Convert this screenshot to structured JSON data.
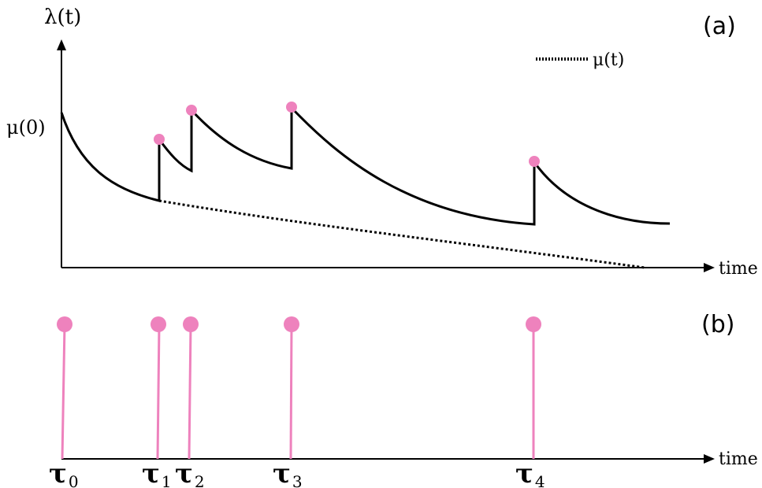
{
  "panel_a": {
    "label": "(a)",
    "y_axis_label": "λ(t)",
    "x_axis_label": "time",
    "mu0_label": "μ(0)",
    "legend_label": "μ(t)"
  },
  "panel_b": {
    "label": "(b)",
    "x_axis_label": "time",
    "events": [
      {
        "symbol": "τ",
        "sub": "0"
      },
      {
        "symbol": "τ",
        "sub": "1"
      },
      {
        "symbol": "τ",
        "sub": "2"
      },
      {
        "symbol": "τ",
        "sub": "3"
      },
      {
        "symbol": "τ",
        "sub": "4"
      }
    ]
  },
  "colors": {
    "event": "#ee82bd",
    "line": "#000000"
  }
}
